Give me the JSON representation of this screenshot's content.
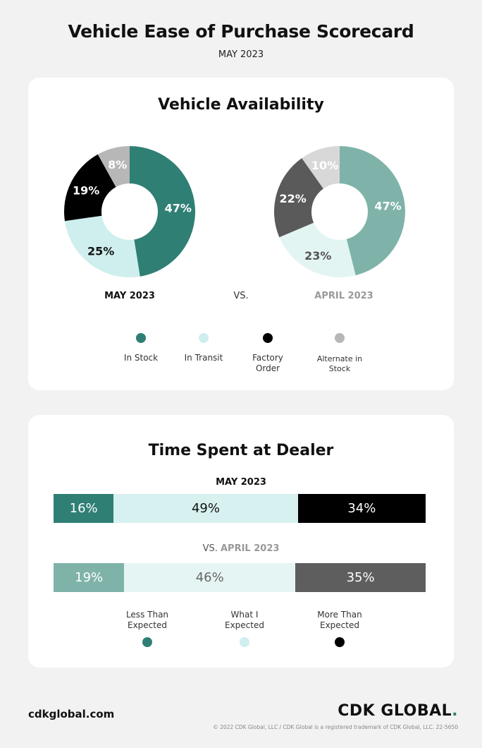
{
  "header": {
    "title": "Vehicle Ease of Purchase Scorecard",
    "subtitle": "MAY 2023"
  },
  "availability": {
    "title": "Vehicle Availability",
    "vs_label": "VS.",
    "legend": [
      {
        "label": "In Stock",
        "color": "#2f7f74"
      },
      {
        "label": "In Transit",
        "color": "#cfeeee"
      },
      {
        "label": "Factory Order",
        "color": "#000000"
      },
      {
        "label": "Alternate in Stock",
        "color": "#b7b7b7"
      }
    ]
  },
  "time_spent": {
    "title": "Time Spent at Dealer",
    "vs_prefix": "VS.",
    "legend": [
      {
        "label": "Less Than Expected",
        "color": "#2f7f74"
      },
      {
        "label": "What I Expected",
        "color": "#cfeeee"
      },
      {
        "label": "More Than Expected",
        "color": "#000000"
      }
    ]
  },
  "footer": {
    "website": "cdkglobal.com",
    "brand": "CDK GLOBAL",
    "brand_dot": ".",
    "copyright": "© 2022 CDK Global, LLC / CDK Global is a registered trademark of CDK Global, LLC. 22-5650"
  },
  "chart_data": [
    {
      "type": "pie",
      "title": "Vehicle Availability",
      "name": "MAY 2023",
      "categories": [
        "In Stock",
        "In Transit",
        "Factory Order",
        "Alternate in Stock"
      ],
      "values": [
        47,
        25,
        19,
        8
      ],
      "labels": [
        "47%",
        "25%",
        "19%",
        "8%"
      ],
      "colors": [
        "#2f7f74",
        "#cfeeee",
        "#000000",
        "#b7b7b7"
      ],
      "label_colors": [
        "#ffffff",
        "#111111",
        "#ffffff",
        "#ffffff"
      ]
    },
    {
      "type": "pie",
      "title": "Vehicle Availability",
      "name": "APRIL 2023",
      "categories": [
        "In Stock",
        "In Transit",
        "Factory Order",
        "Alternate in Stock"
      ],
      "values": [
        47,
        23,
        22,
        10
      ],
      "labels": [
        "47%",
        "23%",
        "22%",
        "10%"
      ],
      "colors": [
        "#7fb3aa",
        "#e3f5f3",
        "#5a5a5a",
        "#d8d8d8"
      ],
      "label_colors": [
        "#ffffff",
        "#555555",
        "#ffffff",
        "#ffffff"
      ]
    },
    {
      "type": "bar",
      "orientation": "horizontal-stacked",
      "title": "Time Spent at Dealer",
      "name": "MAY 2023",
      "categories": [
        "Less Than Expected",
        "What I Expected",
        "More Than Expected"
      ],
      "values": [
        16,
        49,
        34
      ],
      "labels": [
        "16%",
        "49%",
        "34%"
      ],
      "colors": [
        "#2f7f74",
        "#d7f1f0",
        "#000000"
      ],
      "label_colors": [
        "#ffffff",
        "#111111",
        "#ffffff"
      ]
    },
    {
      "type": "bar",
      "orientation": "horizontal-stacked",
      "title": "Time Spent at Dealer",
      "name": "APRIL 2023",
      "categories": [
        "Less Than Expected",
        "What I Expected",
        "More Than Expected"
      ],
      "values": [
        19,
        46,
        35
      ],
      "labels": [
        "19%",
        "46%",
        "35%"
      ],
      "colors": [
        "#7fb3aa",
        "#e5f5f3",
        "#5e5e5e"
      ],
      "label_colors": [
        "#ffffff",
        "#666666",
        "#ffffff"
      ]
    }
  ]
}
